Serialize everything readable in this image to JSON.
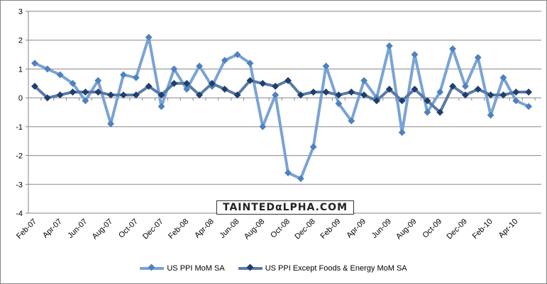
{
  "chart_data": {
    "type": "line",
    "title": "",
    "xlabel": "",
    "ylabel": "",
    "ylim": [
      -4,
      3
    ],
    "yticks": [
      "-4",
      "-3",
      "-2",
      "-1",
      "0",
      "1",
      "2",
      "3"
    ],
    "grid": true,
    "legend_position": "bottom",
    "x": [
      "Feb-07",
      "Mar-07",
      "Apr-07",
      "May-07",
      "Jun-07",
      "Jul-07",
      "Aug-07",
      "Sep-07",
      "Oct-07",
      "Nov-07",
      "Dec-07",
      "Jan-08",
      "Feb-08",
      "Mar-08",
      "Apr-08",
      "May-08",
      "Jun-08",
      "Jul-08",
      "Aug-08",
      "Sep-08",
      "Oct-08",
      "Nov-08",
      "Dec-08",
      "Jan-09",
      "Feb-09",
      "Mar-09",
      "Apr-09",
      "May-09",
      "Jun-09",
      "Jul-09",
      "Aug-09",
      "Sep-09",
      "Oct-09",
      "Nov-09",
      "Dec-09",
      "Jan-10",
      "Feb-10",
      "Mar-10",
      "Apr-10",
      "May-10"
    ],
    "xtick_labels": [
      "Feb-07",
      "Apr-07",
      "Jun-07",
      "Aug-07",
      "Oct-07",
      "Dec-07",
      "Feb-08",
      "Apr-08",
      "Jun-08",
      "Aug-08",
      "Oct-08",
      "Dec-08",
      "Feb-09",
      "Apr-09",
      "Jun-09",
      "Aug-09",
      "Oct-09",
      "Dec-09",
      "Feb-10",
      "Apr-10"
    ],
    "series": [
      {
        "name": "US PPI MoM SA",
        "color": "#7aa3d6",
        "marker": "#4f81bd",
        "values": [
          1.2,
          1.0,
          0.8,
          0.5,
          -0.1,
          0.6,
          -0.9,
          0.8,
          0.7,
          2.1,
          -0.3,
          1.0,
          0.3,
          1.1,
          0.4,
          1.3,
          1.5,
          1.2,
          -1.0,
          0.1,
          -2.6,
          -2.8,
          -1.7,
          1.1,
          -0.2,
          -0.8,
          0.6,
          0.0,
          1.8,
          -1.2,
          1.5,
          -0.5,
          0.2,
          1.7,
          0.4,
          1.4,
          -0.6,
          0.7,
          -0.1,
          -0.3
        ]
      },
      {
        "name": "US PPI Except Foods & Energy MoM SA",
        "color": "#5a7aa6",
        "marker": "#1f3f6e",
        "values": [
          0.4,
          0.0,
          0.1,
          0.2,
          0.2,
          0.2,
          0.1,
          0.1,
          0.1,
          0.4,
          0.1,
          0.5,
          0.5,
          0.1,
          0.5,
          0.3,
          0.1,
          0.6,
          0.5,
          0.4,
          0.6,
          0.1,
          0.2,
          0.2,
          0.1,
          0.2,
          0.1,
          -0.1,
          0.3,
          -0.1,
          0.3,
          -0.1,
          -0.5,
          0.4,
          0.1,
          0.3,
          0.1,
          0.1,
          0.2,
          0.2
        ]
      }
    ],
    "watermark": "TAINTEDαLPHA.COM"
  }
}
